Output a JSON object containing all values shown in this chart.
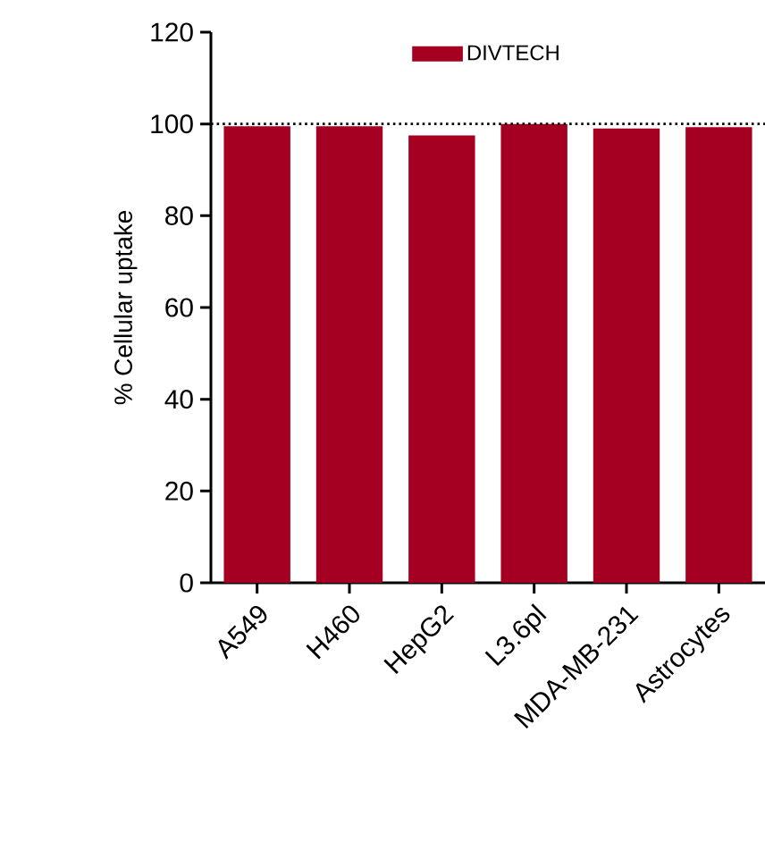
{
  "chart_data": {
    "type": "bar",
    "ylabel": "% Cellular uptake",
    "categories": [
      "A549",
      "H460",
      "HepG2",
      "L3.6pl",
      "MDA-MB-231",
      "Astrocytes"
    ],
    "series": [
      {
        "name": "DIVTECH",
        "color": "#a50021",
        "values": [
          99.5,
          99.5,
          97.5,
          100,
          99,
          99.3
        ]
      }
    ],
    "ylim": [
      0,
      120
    ],
    "yticks": [
      0,
      20,
      40,
      60,
      80,
      100,
      120
    ],
    "ref_lines": [
      {
        "axis": "y",
        "value": 100,
        "line_style": "dotted"
      }
    ],
    "legend": "top"
  }
}
